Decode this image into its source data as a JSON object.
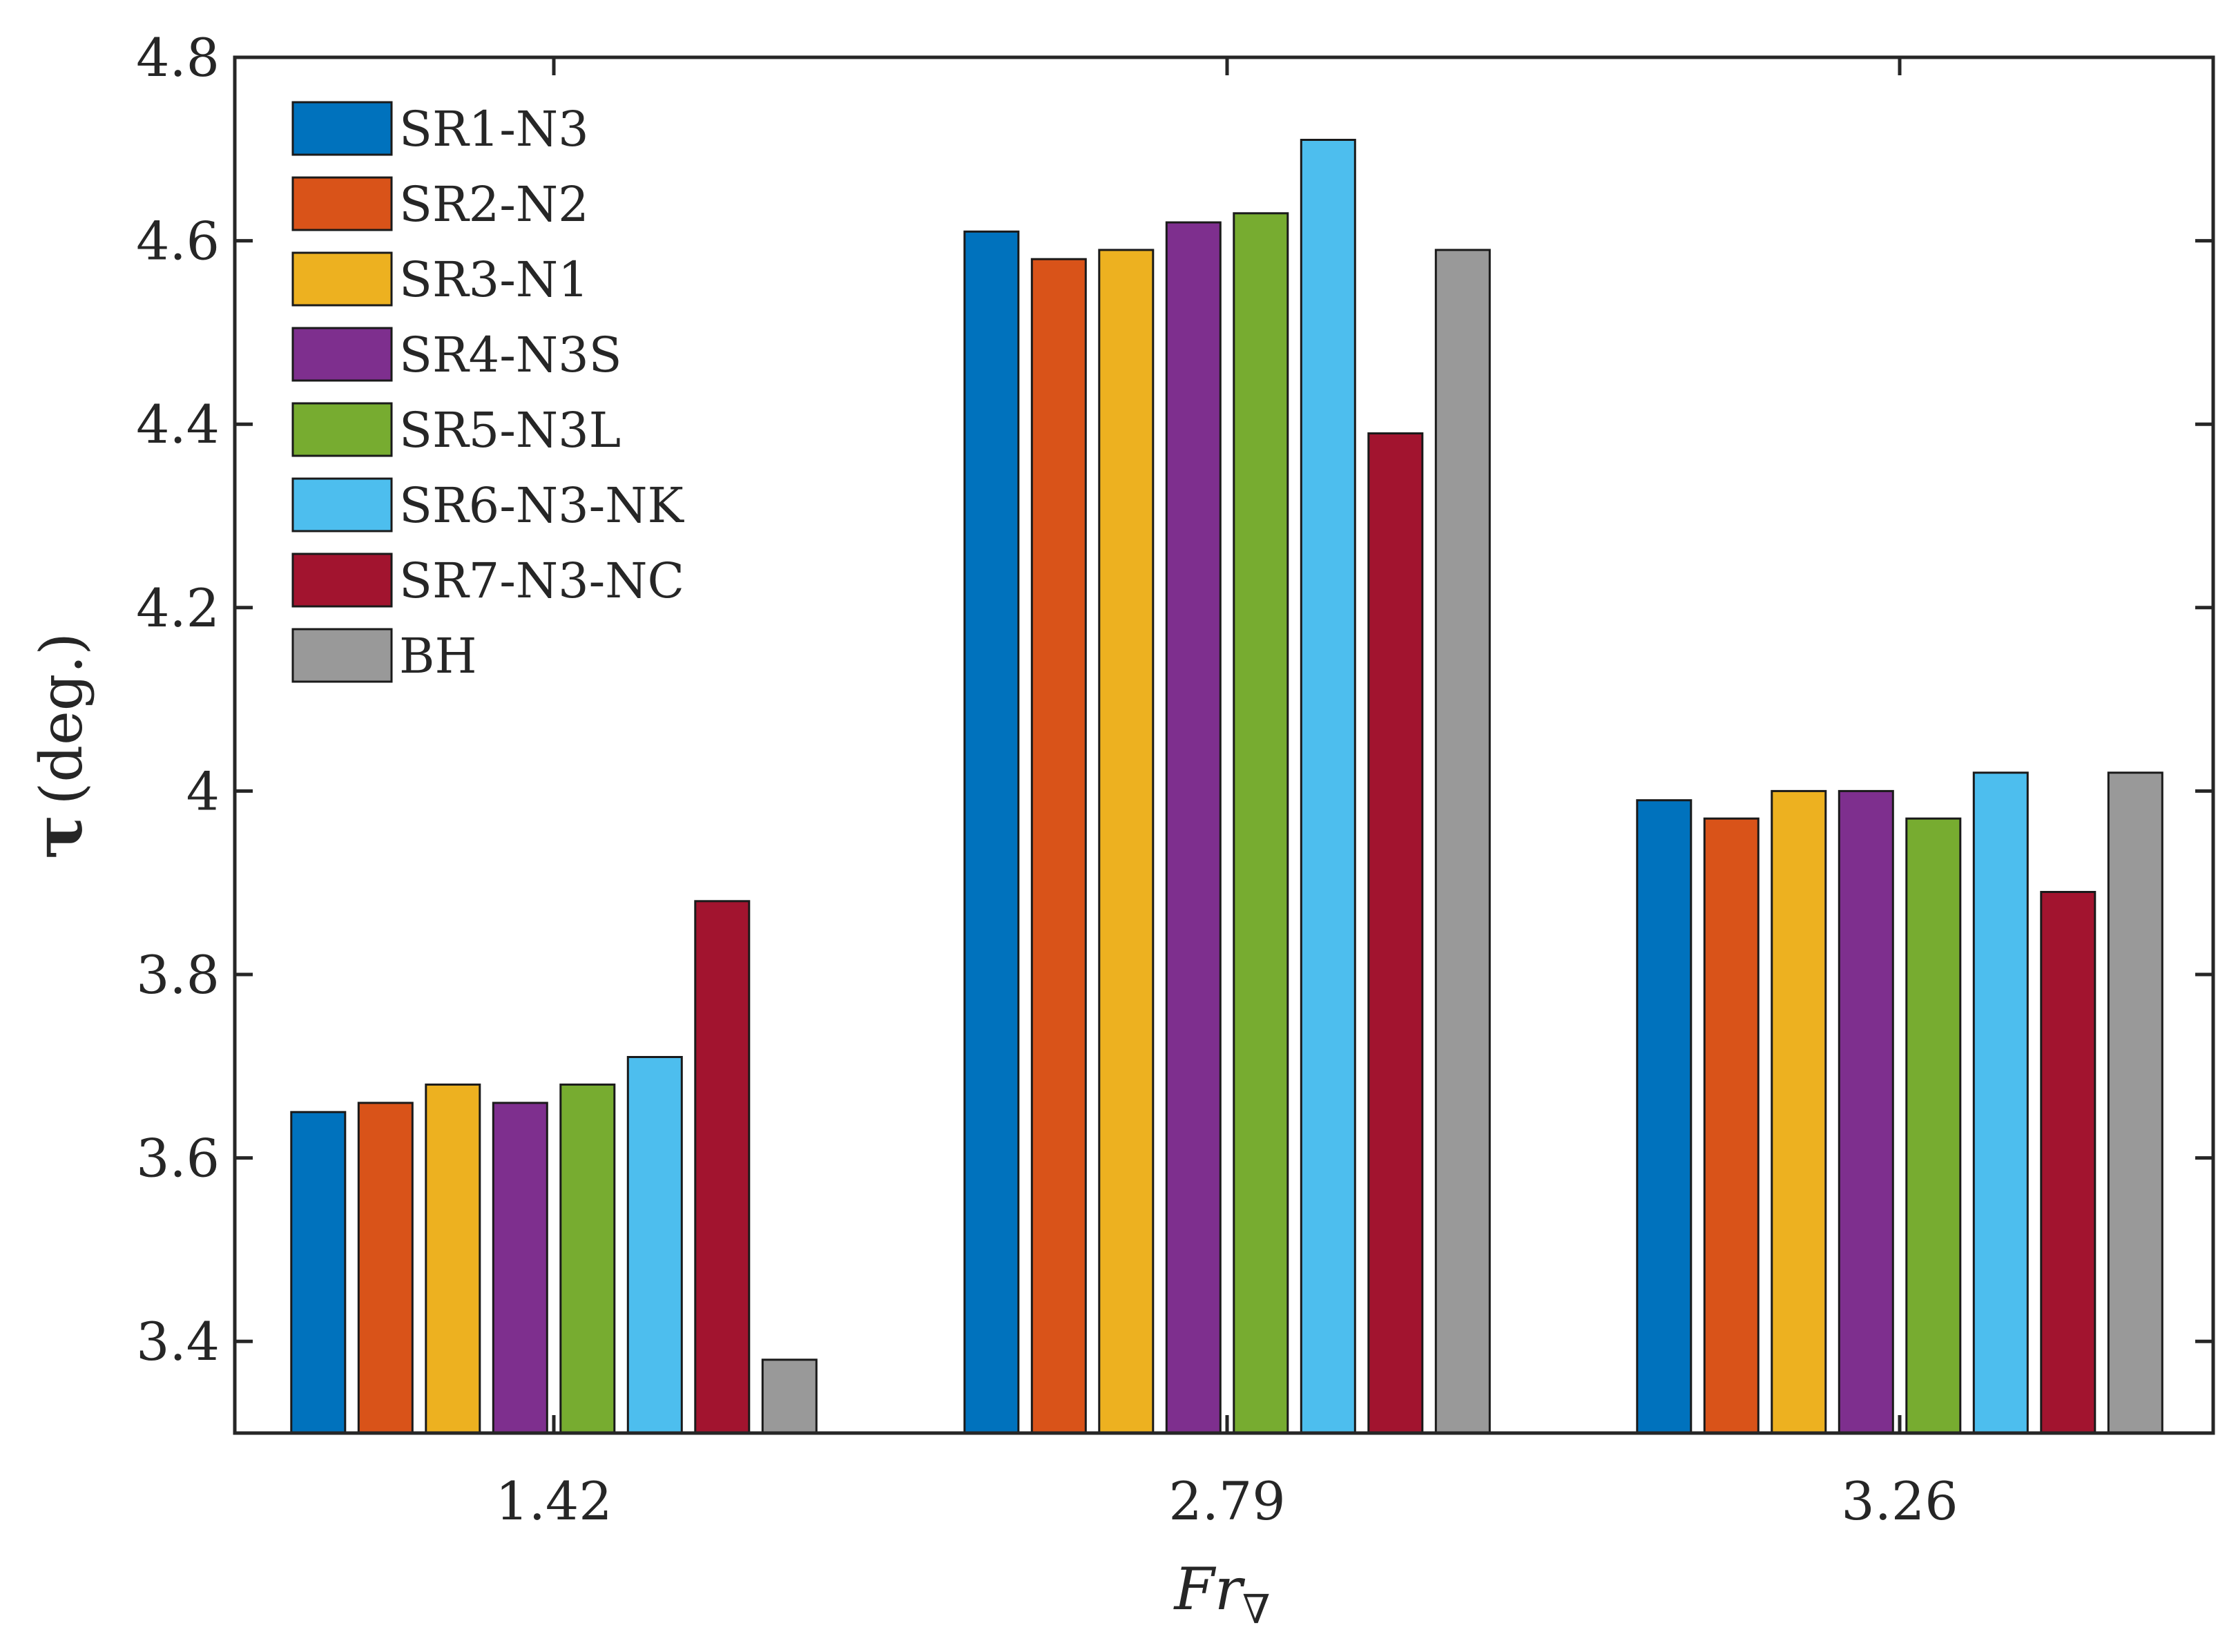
{
  "chart_data": {
    "type": "bar",
    "title": "",
    "xlabel": "Fr",
    "xlabel_subscript": "∇",
    "ylabel_symbol": "τ",
    "ylabel_unit": "(deg.)",
    "ylim": [
      3.3,
      4.8
    ],
    "yticks": [
      3.4,
      3.6,
      3.8,
      4,
      4.2,
      4.4,
      4.6,
      4.8
    ],
    "ytick_labels": [
      "3.4",
      "3.6",
      "3.8",
      "4",
      "4.2",
      "4.4",
      "4.6",
      "4.8"
    ],
    "categories": [
      "1.42",
      "2.79",
      "3.26"
    ],
    "grid": false,
    "legend_position": "top-left",
    "series": [
      {
        "name": "SR1-N3",
        "color": "#0072BD",
        "values": [
          3.65,
          4.61,
          3.99
        ]
      },
      {
        "name": "SR2-N2",
        "color": "#D95319",
        "values": [
          3.66,
          4.58,
          3.97
        ]
      },
      {
        "name": "SR3-N1",
        "color": "#EDB120",
        "values": [
          3.68,
          4.59,
          4.0
        ]
      },
      {
        "name": "SR4-N3S",
        "color": "#7E2F8E",
        "values": [
          3.66,
          4.62,
          4.0
        ]
      },
      {
        "name": "SR5-N3L",
        "color": "#77AC30",
        "values": [
          3.68,
          4.63,
          3.97
        ]
      },
      {
        "name": "SR6-N3-NK",
        "color": "#4DBEEE",
        "values": [
          3.71,
          4.71,
          4.02
        ]
      },
      {
        "name": "SR7-N3-NC",
        "color": "#A2142F",
        "values": [
          3.88,
          4.39,
          3.89
        ]
      },
      {
        "name": "BH",
        "color": "#999999",
        "values": [
          3.38,
          4.59,
          4.02
        ]
      }
    ]
  }
}
